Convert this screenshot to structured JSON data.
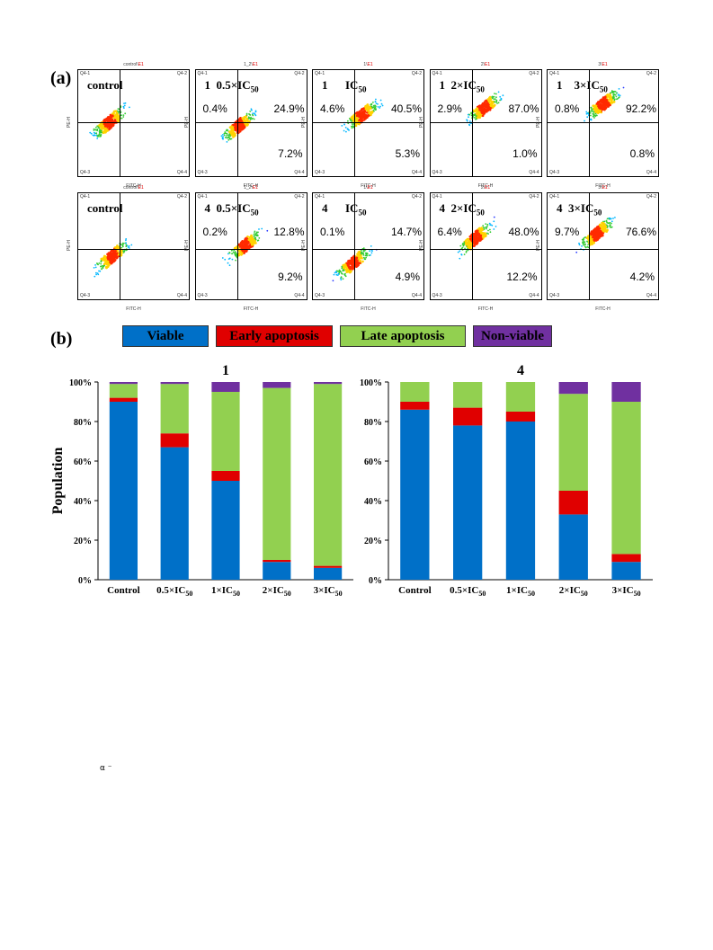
{
  "panels": {
    "a": "(a)",
    "b": "(b)"
  },
  "flow_plots": [
    {
      "title_black": "control",
      "title_red": "E1",
      "caption": "control",
      "pct_ul": "",
      "pct_ur": "",
      "pct_lr": ""
    },
    {
      "title_black": "1_2",
      "title_red": "E1",
      "caption": "1  0.5×IC50",
      "pct_ul": "0.4%",
      "pct_ur": "24.9%",
      "pct_lr": "7.2%"
    },
    {
      "title_black": "1",
      "title_red": "E1",
      "caption": "1      IC50",
      "pct_ul": "4.6%",
      "pct_ur": "40.5%",
      "pct_lr": "5.3%"
    },
    {
      "title_black": "2",
      "title_red": "E1",
      "caption": "1  2×IC50",
      "pct_ul": "2.9%",
      "pct_ur": "87.0%",
      "pct_lr": "1.0%"
    },
    {
      "title_black": "3",
      "title_red": "E1",
      "caption": "1    3×IC50",
      "pct_ul": "0.8%",
      "pct_ur": "92.2%",
      "pct_lr": "0.8%"
    },
    {
      "title_black": "control",
      "title_red": "E1",
      "caption": "control",
      "pct_ul": "",
      "pct_ur": "",
      "pct_lr": ""
    },
    {
      "title_black": "1_2",
      "title_red": "E1",
      "caption": "4  0.5×IC50",
      "pct_ul": "0.2%",
      "pct_ur": "12.8%",
      "pct_lr": "9.2%"
    },
    {
      "title_black": "1",
      "title_red": "E1",
      "caption": "4      IC50",
      "pct_ul": "0.1%",
      "pct_ur": "14.7%",
      "pct_lr": "4.9%"
    },
    {
      "title_black": "2",
      "title_red": "E1",
      "caption": "4  2×IC50",
      "pct_ul": "6.4%",
      "pct_ur": "48.0%",
      "pct_lr": "12.2%"
    },
    {
      "title_black": "3",
      "title_red": "E1",
      "caption": "4  3×IC50",
      "pct_ul": "9.7%",
      "pct_ur": "76.6%",
      "pct_lr": "4.2%"
    }
  ],
  "flow_axes": {
    "x": "FITC-H",
    "y": "PE-H",
    "q1": "Q4-1",
    "q2": "Q4-2",
    "q3": "Q4-3",
    "q4": "Q4-4"
  },
  "legend": [
    {
      "label": "Viable",
      "color": "#0070C8"
    },
    {
      "label": "Early apoptosis",
      "color": "#E00000"
    },
    {
      "label": "Late apoptosis",
      "color": "#92D050"
    },
    {
      "label": "Non-viable",
      "color": "#7030A0"
    }
  ],
  "chart_data": [
    {
      "type": "bar",
      "stacked": true,
      "title": "1",
      "ylabel": "Population",
      "ylim": [
        0,
        100
      ],
      "yticks": [
        "0%",
        "20%",
        "40%",
        "60%",
        "80%",
        "100%"
      ],
      "categories": [
        "Control",
        "0.5×IC50",
        "1×IC50",
        "2×IC50",
        "3×IC50"
      ],
      "series": [
        {
          "name": "Viable",
          "values": [
            90,
            67,
            50,
            9,
            6
          ]
        },
        {
          "name": "Early apoptosis",
          "values": [
            2,
            7,
            5,
            1,
            1
          ]
        },
        {
          "name": "Late apoptosis",
          "values": [
            7,
            25,
            40,
            87,
            92
          ]
        },
        {
          "name": "Non-viable",
          "values": [
            1,
            1,
            5,
            3,
            1
          ]
        }
      ]
    },
    {
      "type": "bar",
      "stacked": true,
      "title": "4",
      "ylabel": "",
      "ylim": [
        0,
        100
      ],
      "yticks": [
        "0%",
        "20%",
        "40%",
        "60%",
        "80%",
        "100%"
      ],
      "categories": [
        "Control",
        "0.5×IC50",
        "1×IC50",
        "2×IC50",
        "3×IC50"
      ],
      "series": [
        {
          "name": "Viable",
          "values": [
            86,
            78,
            80,
            33,
            9
          ]
        },
        {
          "name": "Early apoptosis",
          "values": [
            4,
            9,
            5,
            12,
            4
          ]
        },
        {
          "name": "Late apoptosis",
          "values": [
            10,
            13,
            15,
            49,
            77
          ]
        },
        {
          "name": "Non-viable",
          "values": [
            0,
            0,
            0,
            6,
            10
          ]
        }
      ]
    }
  ],
  "footnote": "α ⁻"
}
